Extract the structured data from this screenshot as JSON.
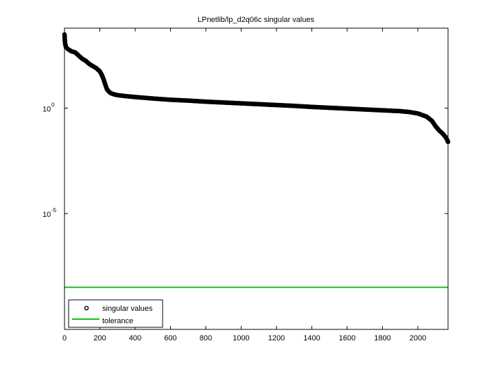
{
  "chart_data": {
    "type": "scatter",
    "title": "LPnetlib/lp_d2q06c singular values",
    "xlabel": "",
    "ylabel": "",
    "xlim": [
      0,
      2171
    ],
    "ylim_log10": [
      -10.5,
      3.8
    ],
    "y_scale": "log",
    "grid": false,
    "legend_position": "bottom-left",
    "x_ticks": [
      0,
      200,
      400,
      600,
      800,
      1000,
      1200,
      1400,
      1600,
      1800,
      2000
    ],
    "x_tick_labels": [
      "0",
      "200",
      "400",
      "600",
      "800",
      "1000",
      "1200",
      "1400",
      "1600",
      "1800",
      "2000"
    ],
    "y_ticks_log10": [
      0,
      -5
    ],
    "y_tick_labels": [
      {
        "base": "10",
        "exp": "0"
      },
      {
        "base": "10",
        "exp": "-5"
      }
    ],
    "series": [
      {
        "name": "singular values",
        "marker": "circle",
        "color": "#000000",
        "points_log10": [
          [
            0,
            3.5
          ],
          [
            3,
            3.1
          ],
          [
            8,
            2.9
          ],
          [
            20,
            2.8
          ],
          [
            40,
            2.7
          ],
          [
            60,
            2.65
          ],
          [
            80,
            2.5
          ],
          [
            100,
            2.35
          ],
          [
            120,
            2.25
          ],
          [
            140,
            2.1
          ],
          [
            160,
            2.0
          ],
          [
            180,
            1.9
          ],
          [
            200,
            1.75
          ],
          [
            210,
            1.6
          ],
          [
            220,
            1.4
          ],
          [
            230,
            1.15
          ],
          [
            240,
            0.9
          ],
          [
            250,
            0.8
          ],
          [
            260,
            0.72
          ],
          [
            280,
            0.66
          ],
          [
            300,
            0.62
          ],
          [
            350,
            0.57
          ],
          [
            400,
            0.53
          ],
          [
            500,
            0.46
          ],
          [
            600,
            0.4
          ],
          [
            700,
            0.36
          ],
          [
            800,
            0.31
          ],
          [
            900,
            0.27
          ],
          [
            1000,
            0.23
          ],
          [
            1100,
            0.19
          ],
          [
            1200,
            0.15
          ],
          [
            1300,
            0.11
          ],
          [
            1400,
            0.06
          ],
          [
            1500,
            0.02
          ],
          [
            1600,
            -0.02
          ],
          [
            1700,
            -0.06
          ],
          [
            1800,
            -0.1
          ],
          [
            1900,
            -0.14
          ],
          [
            1950,
            -0.18
          ],
          [
            2000,
            -0.25
          ],
          [
            2050,
            -0.4
          ],
          [
            2080,
            -0.6
          ],
          [
            2100,
            -0.85
          ],
          [
            2120,
            -1.05
          ],
          [
            2140,
            -1.2
          ],
          [
            2160,
            -1.4
          ],
          [
            2171,
            -1.6
          ]
        ]
      },
      {
        "name": "tolerance",
        "marker": "line",
        "color": "#00cc00",
        "value_log10": -8.5
      }
    ]
  }
}
